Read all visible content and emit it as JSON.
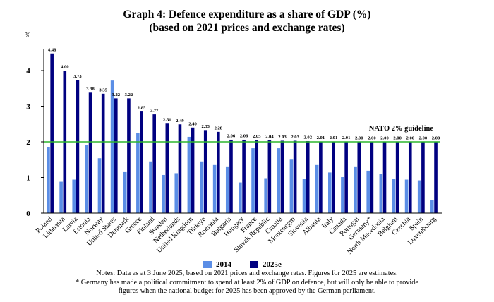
{
  "chart_data": {
    "type": "bar",
    "title": "Graph 4: Defence expenditure as a share of GDP (%)",
    "subtitle": "(based on 2021 prices and exchange rates)",
    "ylabel": "%",
    "ylim": [
      0,
      5
    ],
    "yticks": [
      "0",
      "1",
      "2",
      "3",
      "4"
    ],
    "categories": [
      "Poland",
      "Lithuania",
      "Latvia",
      "Estonia",
      "Norway",
      "United States",
      "Denmark",
      "Greece",
      "Finland",
      "Sweden",
      "Netherlands",
      "United Kingdom",
      "Türkiye",
      "Romania",
      "Bulgaria",
      "Hungary",
      "France",
      "Slovak Republic",
      "Croatia",
      "Montenegro",
      "Slovenia",
      "Albania",
      "Italy",
      "Canada",
      "Portugal",
      "Germany*",
      "North Macedonia",
      "Belgium",
      "Czechia",
      "Spain",
      "Luxembourg"
    ],
    "series": [
      {
        "name": "2014",
        "color": "#5b8ee6",
        "values": [
          1.86,
          0.88,
          0.94,
          1.92,
          1.54,
          3.72,
          1.15,
          2.24,
          1.45,
          1.07,
          1.12,
          2.14,
          1.45,
          1.35,
          1.31,
          0.86,
          1.82,
          0.98,
          1.82,
          1.5,
          0.97,
          1.35,
          1.14,
          1.01,
          1.31,
          1.19,
          1.09,
          0.97,
          0.94,
          0.92,
          0.37
        ]
      },
      {
        "name": "2025e",
        "color": "#000080",
        "values": [
          4.48,
          4.0,
          3.73,
          3.38,
          3.35,
          3.22,
          3.22,
          2.85,
          2.77,
          2.51,
          2.49,
          2.4,
          2.33,
          2.28,
          2.06,
          2.06,
          2.05,
          2.04,
          2.03,
          2.03,
          2.02,
          2.01,
          2.01,
          2.01,
          2.0,
          2.0,
          2.0,
          2.0,
          2.0,
          2.0,
          2.0
        ]
      }
    ],
    "data_labels": [
      "4.48",
      "4.00",
      "3.73",
      "3.38",
      "3.35",
      "3.22",
      "3.22",
      "2.85",
      "2.77",
      "2.51",
      "2.49",
      "2.40",
      "2.33",
      "2.28",
      "2.06",
      "2.06",
      "2.05",
      "2.04",
      "2.03",
      "2.03",
      "2.02",
      "2.01",
      "2.01",
      "2.01",
      "2.00",
      "2.00",
      "2.00",
      "2.00",
      "2.00",
      "2.00",
      "2.00"
    ],
    "guideline": {
      "value": 2,
      "label": "NATO 2% guideline",
      "color": "#2db52d"
    },
    "legend_position": "bottom"
  },
  "legend": {
    "label_2014": "2014",
    "label_2025": "2025e"
  },
  "notes": {
    "line1": "Notes: Data as at 3 June 2025, based on 2021 prices and exchange rates. Figures for 2025 are estimates.",
    "line2": "* Germany has made a political commitment to spend at least 2% of GDP on defence, but will only be able to provide",
    "line3": "figures when the national budget for 2025 has been approved by the German parliament."
  }
}
